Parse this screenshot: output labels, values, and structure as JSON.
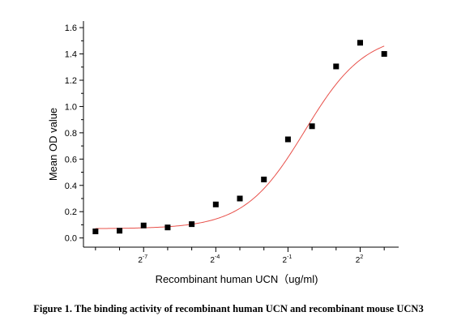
{
  "chart_data": {
    "type": "scatter",
    "xlabel": "Recombinant human UCN（ug/ml)",
    "ylabel": "Mean OD value",
    "x_scale": "log2",
    "xlim_log2": [
      -9.5,
      3.6
    ],
    "ylim": [
      -0.07,
      1.65
    ],
    "y_ticks": [
      "0.0",
      "0.2",
      "0.4",
      "0.6",
      "0.8",
      "1.0",
      "1.2",
      "1.4",
      "1.6"
    ],
    "x_tick_labels": [
      {
        "base": "2",
        "exp": "-7"
      },
      {
        "base": "2",
        "exp": "-4"
      },
      {
        "base": "2",
        "exp": "-1"
      },
      {
        "base": "2",
        "exp": "2"
      }
    ],
    "grid": false,
    "marker_color": "#000000",
    "fit_color": "#e8504a",
    "series": [
      {
        "x_log2": [
          -9,
          -8,
          -7,
          -6,
          -5,
          -4,
          -3,
          -2,
          -1,
          0,
          1,
          2,
          3
        ],
        "values": [
          0.05,
          0.055,
          0.095,
          0.08,
          0.105,
          0.255,
          0.3,
          0.445,
          0.75,
          0.85,
          1.305,
          1.485,
          1.4
        ]
      }
    ],
    "fit": {
      "type": "4PL",
      "bottom": 0.07,
      "top": 1.56,
      "log2_ec50": -0.3,
      "hill_slope": 1.15
    }
  },
  "caption": "Figure 1. The binding activity of recombinant human UCN and recombinant mouse UCN3"
}
